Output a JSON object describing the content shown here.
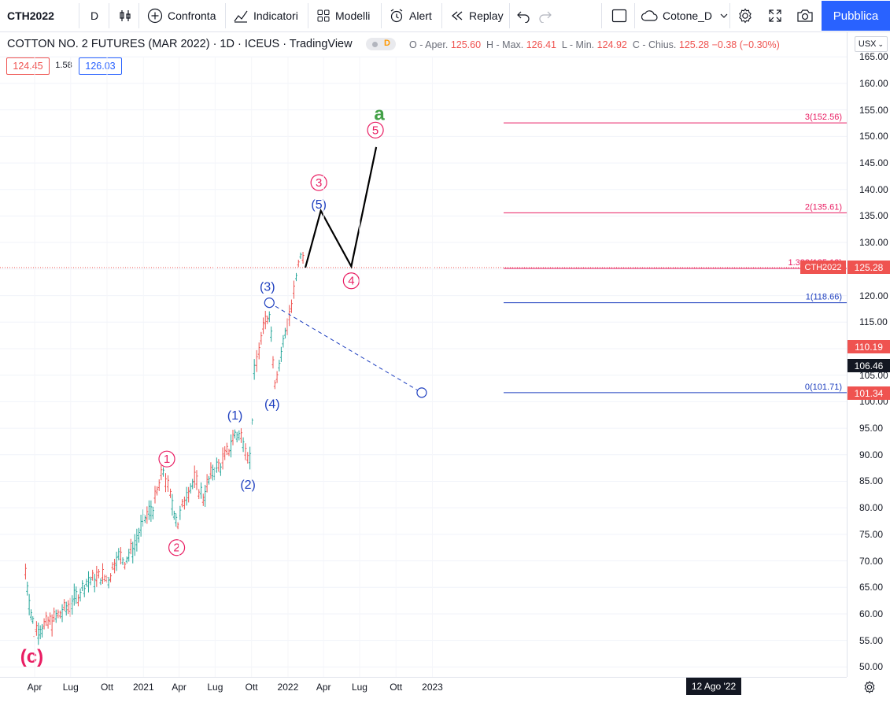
{
  "toolbar": {
    "symbol": "CTH2022",
    "interval": "D",
    "compare_label": "Confronta",
    "indicators_label": "Indicatori",
    "templates_label": "Modelli",
    "alert_label": "Alert",
    "replay_label": "Replay",
    "layout_name": "Cotone_D",
    "publish_label": "Pubblica"
  },
  "legend": {
    "title": "COTTON NO. 2 FUTURES (MAR 2022) · 1D · ICEUS · TradingView",
    "interval_badge": "D",
    "o_label": "O - Aper.",
    "o_value": "125.60",
    "h_label": "H - Max.",
    "h_value": "126.41",
    "l_label": "L - Min.",
    "l_value": "124.92",
    "c_label": "C - Chius.",
    "c_value": "125.28",
    "change": "−0.38 (−0.30%)",
    "bid": "124.45",
    "spread": "1.58",
    "ask": "126.03"
  },
  "axis": {
    "currency": "USX",
    "y_ticks": [
      "165.00",
      "160.00",
      "155.00",
      "150.00",
      "145.00",
      "140.00",
      "135.00",
      "130.00",
      "125.00",
      "120.00",
      "115.00",
      "110.00",
      "105.00",
      "100.00",
      "95.00",
      "90.00",
      "85.00",
      "80.00",
      "75.00",
      "70.00",
      "65.00",
      "60.00",
      "55.00",
      "50.00"
    ],
    "x_ticks": [
      "Apr",
      "Lug",
      "Ott",
      "2021",
      "Apr",
      "Lug",
      "Ott",
      "2022",
      "Apr",
      "Lug",
      "Ott",
      "2023"
    ],
    "cursor_date": "12 Ago '22",
    "price_labels": [
      {
        "text": "110.19",
        "bg": "#ef5350"
      },
      {
        "text": "106.46",
        "bg": "#131722"
      },
      {
        "text": "101.34",
        "bg": "#ef5350"
      }
    ],
    "last_symbol": "CTH2022",
    "last_price": "125.28"
  },
  "chart_data": {
    "type": "line",
    "title": "COTTON NO. 2 FUTURES (MAR 2022)",
    "ylim": [
      48,
      167
    ],
    "fib_levels": [
      {
        "label": "3(152.56)",
        "value": 152.56,
        "color": "#e91e63"
      },
      {
        "label": "2(135.61)",
        "value": 135.61,
        "color": "#e91e63"
      },
      {
        "label": "1.382(125.13)",
        "value": 125.13,
        "color": "#e91e63"
      },
      {
        "label": "1(118.66)",
        "value": 118.66,
        "color": "#1e3fbf"
      },
      {
        "label": "0(101.71)",
        "value": 101.71,
        "color": "#1e3fbf"
      }
    ],
    "price_series": [
      {
        "t": "2020-03-09",
        "v": 68
      },
      {
        "t": "2020-03-23",
        "v": 60
      },
      {
        "t": "2020-04-01",
        "v": 57
      },
      {
        "t": "2020-04-20",
        "v": 57.5
      },
      {
        "t": "2020-05-20",
        "v": 59
      },
      {
        "t": "2020-06-20",
        "v": 61
      },
      {
        "t": "2020-07-15",
        "v": 63
      },
      {
        "t": "2020-08-10",
        "v": 66
      },
      {
        "t": "2020-09-15",
        "v": 67
      },
      {
        "t": "2020-10-05",
        "v": 66.5
      },
      {
        "t": "2020-10-25",
        "v": 71
      },
      {
        "t": "2020-11-15",
        "v": 70
      },
      {
        "t": "2020-12-10",
        "v": 73
      },
      {
        "t": "2021-01-05",
        "v": 78
      },
      {
        "t": "2021-01-25",
        "v": 80
      },
      {
        "t": "2021-02-20",
        "v": 87
      },
      {
        "t": "2021-03-10",
        "v": 82
      },
      {
        "t": "2021-03-29",
        "v": 77
      },
      {
        "t": "2021-04-20",
        "v": 83
      },
      {
        "t": "2021-05-10",
        "v": 85
      },
      {
        "t": "2021-06-01",
        "v": 82
      },
      {
        "t": "2021-06-25",
        "v": 87
      },
      {
        "t": "2021-07-15",
        "v": 88
      },
      {
        "t": "2021-08-05",
        "v": 91
      },
      {
        "t": "2021-08-20",
        "v": 94
      },
      {
        "t": "2021-09-10",
        "v": 93
      },
      {
        "t": "2021-09-27",
        "v": 89
      },
      {
        "t": "2021-10-08",
        "v": 105
      },
      {
        "t": "2021-10-20",
        "v": 110
      },
      {
        "t": "2021-11-05",
        "v": 115
      },
      {
        "t": "2021-11-15",
        "v": 117
      },
      {
        "t": "2021-11-29",
        "v": 104
      },
      {
        "t": "2021-12-10",
        "v": 107
      },
      {
        "t": "2021-12-25",
        "v": 113
      },
      {
        "t": "2022-01-10",
        "v": 118
      },
      {
        "t": "2022-01-22",
        "v": 123
      },
      {
        "t": "2022-02-02",
        "v": 128
      },
      {
        "t": "2022-02-14",
        "v": 125.28
      }
    ],
    "projection": [
      {
        "t": "2022-02-14",
        "v": 125.28
      },
      {
        "t": "2022-03-25",
        "v": 136
      },
      {
        "t": "2022-06-10",
        "v": 125.5
      },
      {
        "t": "2022-08-12",
        "v": 148
      }
    ],
    "projection_dashed": [
      {
        "t": "2021-11-15",
        "v": 118.66
      },
      {
        "t": "2022-12-05",
        "v": 101.71
      }
    ],
    "wave_labels_primary": [
      {
        "text": "1",
        "t": "2021-03-01",
        "v": 89.2
      },
      {
        "text": "2",
        "t": "2021-03-26",
        "v": 72.5
      },
      {
        "text": "3",
        "t": "2022-03-20",
        "v": 141.3
      },
      {
        "text": "4",
        "t": "2022-06-10",
        "v": 122.8
      },
      {
        "text": "5",
        "t": "2022-08-10",
        "v": 151.2
      }
    ],
    "wave_labels_intermediate": [
      {
        "text": "(1)",
        "t": "2021-08-20",
        "v": 97.5
      },
      {
        "text": "(2)",
        "t": "2021-09-22",
        "v": 84.5
      },
      {
        "text": "(3)",
        "t": "2021-11-10",
        "v": 121.8
      },
      {
        "text": "(4)",
        "t": "2021-11-22",
        "v": 99.7
      },
      {
        "text": "(5)",
        "t": "2022-03-20",
        "v": 137.3
      }
    ],
    "degree_labels": [
      {
        "text": "(c)",
        "t": "2020-03-25",
        "v": 52,
        "color": "#e91e63"
      },
      {
        "text": "a",
        "t": "2022-08-20",
        "v": 154.3,
        "color": "#43a047"
      }
    ]
  }
}
